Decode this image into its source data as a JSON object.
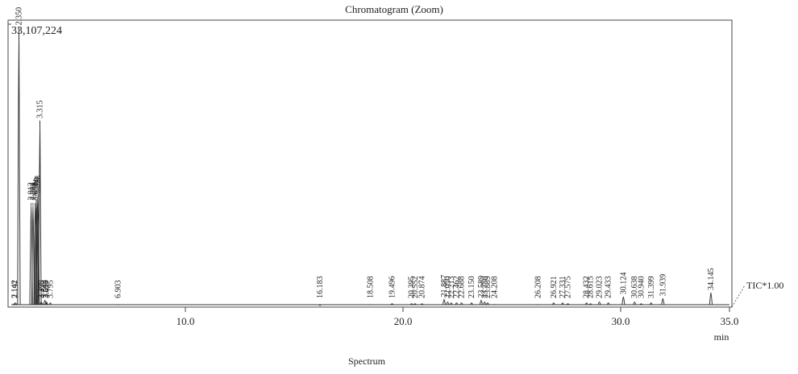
{
  "chart_data": {
    "type": "chromatogram",
    "title": "Chromatogram (Zoom)",
    "xlabel": "min",
    "footer": "Spectrum",
    "trace_label": "TIC*1.00",
    "xlim": [
      2,
      35
    ],
    "xticks": [
      {
        "value": 10,
        "label": "10.0"
      },
      {
        "value": 20,
        "label": "20.0"
      },
      {
        "value": 30,
        "label": "30.0"
      },
      {
        "value": 35,
        "label": "35.0"
      }
    ],
    "ylim": [
      0,
      33107224
    ],
    "yticks": [
      {
        "value": 33107224,
        "label": "33,107,224"
      }
    ],
    "color": "#333333",
    "peaks": {
      "x": [
        2.142,
        2.197,
        2.35,
        2.912,
        2.998,
        3.098,
        3.144,
        3.19,
        3.228,
        3.315,
        3.375,
        3.398,
        3.544,
        3.598,
        3.617,
        3.795,
        6.903,
        16.183,
        18.508,
        19.496,
        20.395,
        20.552,
        20.874,
        21.887,
        22.05,
        22.213,
        22.462,
        22.688,
        23.15,
        23.589,
        23.75,
        23.889,
        24.208,
        26.208,
        26.921,
        27.331,
        27.575,
        28.432,
        28.615,
        29.023,
        29.433,
        30.124,
        30.638,
        30.94,
        31.399,
        31.939,
        34.145
      ],
      "labels": [
        "2.142",
        "2.197",
        "2.350",
        "2.912",
        "2.998",
        "3.098",
        "3.144",
        "3.190",
        "3.228",
        "3.315",
        "3.375",
        "3.398",
        "3.544",
        "3.598",
        "3.617",
        "3.795",
        "6.903",
        "16.183",
        "18.508",
        "19.496",
        "20.395",
        "20.552",
        "20.874",
        "21.887",
        "22.050",
        "22.213",
        "22.462",
        "22.688",
        "23.150",
        "23.589",
        "23.750",
        "23.889",
        "24.208",
        "26.208",
        "26.921",
        "27.331",
        "27.575",
        "28.432",
        "28.615",
        "29.023",
        "29.433",
        "30.124",
        "30.638",
        "30.940",
        "31.399",
        "31.939",
        "34.145"
      ],
      "values": [
        400000,
        500000,
        32700000,
        12200000,
        12200000,
        12200000,
        12600000,
        12800000,
        13000000,
        21800000,
        600000,
        500000,
        800000,
        500000,
        600000,
        500000,
        300000,
        200000,
        300000,
        400000,
        400000,
        400000,
        400000,
        900000,
        600000,
        500000,
        500000,
        500000,
        500000,
        800000,
        600000,
        500000,
        300000,
        300000,
        500000,
        500000,
        400000,
        500000,
        400000,
        600000,
        500000,
        1200000,
        600000,
        400000,
        500000,
        1000000,
        1700000
      ]
    }
  }
}
